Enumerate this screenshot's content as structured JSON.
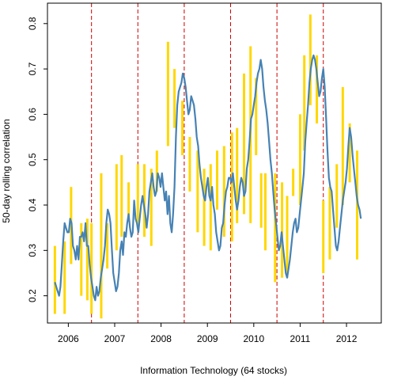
{
  "chart_data": {
    "type": "line",
    "title": "",
    "xlabel": "Information Technology (64 stocks)",
    "ylabel": "50-day rolling correlation",
    "xlim": [
      2005.55,
      2012.75
    ],
    "ylim": [
      0.14,
      0.845
    ],
    "x_ticks": [
      {
        "label": "2006",
        "x": 2006.0
      },
      {
        "label": "2007",
        "x": 2007.0
      },
      {
        "label": "2008",
        "x": 2008.0
      },
      {
        "label": "2009",
        "x": 2009.0
      },
      {
        "label": "2010",
        "x": 2010.0
      },
      {
        "label": "2011",
        "x": 2011.0
      },
      {
        "label": "2012",
        "x": 2012.0
      }
    ],
    "y_ticks": [
      0.2,
      0.3,
      0.4,
      0.5,
      0.6,
      0.7,
      0.8
    ],
    "year_boundaries": [
      2006.5,
      2007.5,
      2008.5,
      2009.5,
      2010.5,
      2011.5
    ],
    "colors": {
      "line": "#4682b4",
      "bars": "#ffd700",
      "boundaries": "#cc0000",
      "axis": "#000000"
    },
    "series": [
      {
        "type": "line",
        "x": [
          2005.71,
          2005.74,
          2005.77,
          2005.8,
          2005.83,
          2005.86,
          2005.89,
          2005.92,
          2005.95,
          2005.98,
          2006.01,
          2006.04,
          2006.07,
          2006.1,
          2006.13,
          2006.16,
          2006.19,
          2006.22,
          2006.25,
          2006.28,
          2006.31,
          2006.34,
          2006.37,
          2006.4,
          2006.43,
          2006.46,
          2006.49,
          2006.52,
          2006.55,
          2006.58,
          2006.61,
          2006.64,
          2006.67,
          2006.7,
          2006.73,
          2006.76,
          2006.79,
          2006.82,
          2006.85,
          2006.88,
          2006.91,
          2006.94,
          2006.97,
          2007.0,
          2007.03,
          2007.06,
          2007.09,
          2007.12,
          2007.15,
          2007.18,
          2007.21,
          2007.24,
          2007.27,
          2007.3,
          2007.33,
          2007.36,
          2007.39,
          2007.42,
          2007.45,
          2007.48,
          2007.51,
          2007.54,
          2007.57,
          2007.6,
          2007.63,
          2007.66,
          2007.69,
          2007.72,
          2007.75,
          2007.78,
          2007.81,
          2007.84,
          2007.87,
          2007.9,
          2007.93,
          2007.96,
          2007.99,
          2008.02,
          2008.05,
          2008.08,
          2008.11,
          2008.14,
          2008.17,
          2008.2,
          2008.23,
          2008.26,
          2008.29,
          2008.32,
          2008.35,
          2008.38,
          2008.41,
          2008.44,
          2008.47,
          2008.5,
          2008.53,
          2008.56,
          2008.59,
          2008.62,
          2008.65,
          2008.68,
          2008.71,
          2008.74,
          2008.77,
          2008.8,
          2008.83,
          2008.86,
          2008.89,
          2008.92,
          2008.95,
          2008.98,
          2009.01,
          2009.04,
          2009.07,
          2009.1,
          2009.13,
          2009.16,
          2009.19,
          2009.22,
          2009.25,
          2009.28,
          2009.31,
          2009.34,
          2009.37,
          2009.4,
          2009.43,
          2009.46,
          2009.49,
          2009.52,
          2009.55,
          2009.58,
          2009.61,
          2009.64,
          2009.67,
          2009.7,
          2009.73,
          2009.76,
          2009.79,
          2009.82,
          2009.85,
          2009.88,
          2009.91,
          2009.94,
          2009.97,
          2010.0,
          2010.03,
          2010.06,
          2010.09,
          2010.12,
          2010.15,
          2010.18,
          2010.21,
          2010.24,
          2010.27,
          2010.3,
          2010.33,
          2010.36,
          2010.39,
          2010.42,
          2010.45,
          2010.48,
          2010.51,
          2010.54,
          2010.57,
          2010.6,
          2010.63,
          2010.66,
          2010.69,
          2010.72,
          2010.75,
          2010.78,
          2010.81,
          2010.84,
          2010.87,
          2010.9,
          2010.93,
          2010.96,
          2010.99,
          2011.02,
          2011.05,
          2011.08,
          2011.11,
          2011.14,
          2011.17,
          2011.2,
          2011.23,
          2011.26,
          2011.29,
          2011.32,
          2011.35,
          2011.38,
          2011.41,
          2011.44,
          2011.47,
          2011.5,
          2011.53,
          2011.56,
          2011.59,
          2011.62,
          2011.65,
          2011.68,
          2011.71,
          2011.74,
          2011.77,
          2011.8,
          2011.83,
          2011.86,
          2011.89,
          2011.92,
          2011.95,
          2011.98,
          2012.01,
          2012.04,
          2012.07,
          2012.1,
          2012.13,
          2012.16,
          2012.19,
          2012.22,
          2012.25,
          2012.28,
          2012.31
        ],
        "y": [
          0.23,
          0.22,
          0.21,
          0.2,
          0.22,
          0.27,
          0.32,
          0.36,
          0.35,
          0.34,
          0.34,
          0.37,
          0.36,
          0.31,
          0.3,
          0.28,
          0.31,
          0.28,
          0.33,
          0.33,
          0.34,
          0.32,
          0.36,
          0.31,
          0.31,
          0.27,
          0.24,
          0.22,
          0.2,
          0.19,
          0.22,
          0.2,
          0.21,
          0.24,
          0.26,
          0.28,
          0.31,
          0.36,
          0.39,
          0.38,
          0.36,
          0.3,
          0.25,
          0.23,
          0.21,
          0.22,
          0.25,
          0.3,
          0.32,
          0.29,
          0.34,
          0.33,
          0.36,
          0.38,
          0.35,
          0.33,
          0.34,
          0.41,
          0.37,
          0.36,
          0.34,
          0.37,
          0.4,
          0.42,
          0.4,
          0.38,
          0.35,
          0.38,
          0.43,
          0.45,
          0.47,
          0.44,
          0.42,
          0.43,
          0.47,
          0.46,
          0.44,
          0.47,
          0.44,
          0.41,
          0.43,
          0.38,
          0.42,
          0.36,
          0.34,
          0.38,
          0.44,
          0.55,
          0.62,
          0.65,
          0.66,
          0.67,
          0.69,
          0.68,
          0.66,
          0.63,
          0.6,
          0.61,
          0.64,
          0.63,
          0.62,
          0.59,
          0.55,
          0.53,
          0.49,
          0.46,
          0.44,
          0.42,
          0.41,
          0.44,
          0.46,
          0.42,
          0.41,
          0.44,
          0.4,
          0.38,
          0.34,
          0.32,
          0.3,
          0.31,
          0.35,
          0.36,
          0.4,
          0.43,
          0.44,
          0.46,
          0.46,
          0.45,
          0.47,
          0.44,
          0.41,
          0.39,
          0.41,
          0.44,
          0.46,
          0.45,
          0.42,
          0.43,
          0.48,
          0.5,
          0.54,
          0.59,
          0.6,
          0.62,
          0.64,
          0.67,
          0.69,
          0.7,
          0.72,
          0.7,
          0.66,
          0.63,
          0.61,
          0.58,
          0.54,
          0.5,
          0.47,
          0.43,
          0.39,
          0.36,
          0.33,
          0.3,
          0.31,
          0.34,
          0.31,
          0.28,
          0.25,
          0.24,
          0.26,
          0.28,
          0.31,
          0.34,
          0.36,
          0.37,
          0.34,
          0.35,
          0.38,
          0.41,
          0.44,
          0.47,
          0.54,
          0.58,
          0.62,
          0.67,
          0.7,
          0.72,
          0.73,
          0.72,
          0.7,
          0.67,
          0.64,
          0.65,
          0.68,
          0.7,
          0.66,
          0.59,
          0.52,
          0.46,
          0.44,
          0.43,
          0.39,
          0.35,
          0.31,
          0.3,
          0.32,
          0.35,
          0.38,
          0.41,
          0.43,
          0.45,
          0.48,
          0.53,
          0.57,
          0.55,
          0.51,
          0.48,
          0.45,
          0.42,
          0.4,
          0.39,
          0.37
        ]
      },
      {
        "type": "range-bars",
        "x": [
          2005.71,
          2005.92,
          2006.06,
          2006.28,
          2006.41,
          2006.5,
          2006.71,
          2006.84,
          2007.04,
          2007.15,
          2007.3,
          2007.5,
          2007.64,
          2007.79,
          2007.91,
          2008.15,
          2008.29,
          2008.46,
          2008.62,
          2008.79,
          2008.93,
          2009.07,
          2009.21,
          2009.36,
          2009.53,
          2009.64,
          2009.79,
          2009.93,
          2010.05,
          2010.16,
          2010.25,
          2010.46,
          2010.61,
          2010.72,
          2010.85,
          2011.0,
          2011.09,
          2011.22,
          2011.36,
          2011.5,
          2011.64,
          2011.79,
          2011.92,
          2012.07,
          2012.23
        ],
        "low": [
          0.16,
          0.16,
          0.27,
          0.2,
          0.19,
          0.16,
          0.15,
          0.26,
          0.3,
          0.33,
          0.37,
          0.35,
          0.33,
          0.31,
          0.43,
          0.53,
          0.57,
          0.51,
          0.43,
          0.34,
          0.31,
          0.3,
          0.39,
          0.33,
          0.32,
          0.36,
          0.38,
          0.36,
          0.51,
          0.35,
          0.3,
          0.23,
          0.24,
          0.24,
          0.42,
          0.4,
          0.52,
          0.62,
          0.58,
          0.25,
          0.28,
          0.35,
          0.4,
          0.45,
          0.28
        ],
        "high": [
          0.31,
          0.32,
          0.44,
          0.36,
          0.37,
          0.36,
          0.47,
          0.36,
          0.49,
          0.51,
          0.45,
          0.49,
          0.49,
          0.48,
          0.52,
          0.76,
          0.7,
          0.63,
          0.55,
          0.52,
          0.48,
          0.49,
          0.52,
          0.53,
          0.56,
          0.57,
          0.69,
          0.75,
          0.68,
          0.47,
          0.47,
          0.47,
          0.45,
          0.42,
          0.48,
          0.6,
          0.73,
          0.82,
          0.73,
          0.41,
          0.44,
          0.49,
          0.66,
          0.58,
          0.52
        ]
      }
    ]
  }
}
